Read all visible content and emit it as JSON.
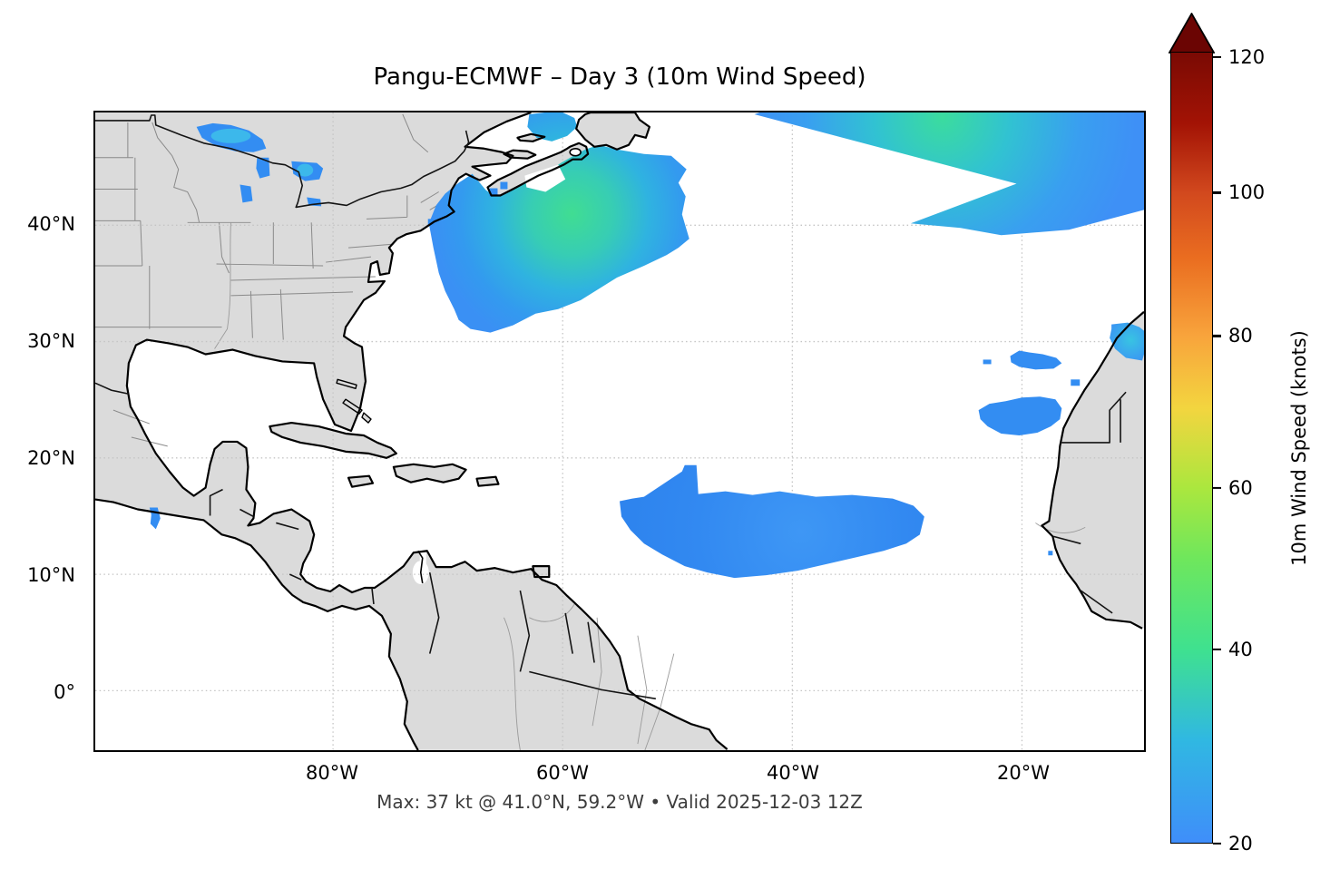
{
  "title": "Pangu-ECMWF – Day 3 (10m Wind Speed)",
  "caption": "Max: 37 kt @ 41.0°N, 59.2°W • Valid 2025-12-03 12Z",
  "axes": {
    "x_tick_labels": [
      "80°W",
      "60°W",
      "40°W",
      "20°W"
    ],
    "y_tick_labels": [
      "40°N",
      "30°N",
      "20°N",
      "10°N",
      "0°"
    ]
  },
  "colorbar": {
    "label": "10m Wind Speed (knots)",
    "tick_labels": [
      "120",
      "100",
      "80",
      "60",
      "40",
      "20"
    ],
    "tick_values": [
      120,
      100,
      80,
      60,
      40,
      20
    ],
    "tick_offsets_pct": [
      0.7,
      17.8,
      35.9,
      55.1,
      75.5,
      100
    ],
    "min": 20,
    "max": 120,
    "extend": "max",
    "arrow_color": "#6b0503",
    "gradient_stops": [
      {
        "pct": 0,
        "color": "#7a0a04"
      },
      {
        "pct": 9,
        "color": "#a31305"
      },
      {
        "pct": 17.8,
        "color": "#d2491e"
      },
      {
        "pct": 26,
        "color": "#ea6d20"
      },
      {
        "pct": 35.9,
        "color": "#f8a43c"
      },
      {
        "pct": 45,
        "color": "#f3d53f"
      },
      {
        "pct": 55.1,
        "color": "#abe73e"
      },
      {
        "pct": 64,
        "color": "#6fe75c"
      },
      {
        "pct": 75.5,
        "color": "#3fe18f"
      },
      {
        "pct": 87,
        "color": "#30b8e2"
      },
      {
        "pct": 100,
        "color": "#3f8efa"
      }
    ]
  },
  "colors": {
    "land": "#dbdbdb",
    "coastline": "#000000",
    "country_border": "#141414",
    "state_border": "#8a8a8a",
    "river": "#9a9a9a",
    "gridline": "#c4c4c4",
    "ocean": "#ffffff",
    "wind_low": "#338df2",
    "wind_cyan": "#3ec0ea",
    "wind_core_green": "#40dd92",
    "caption_text": "#3d3d3d"
  },
  "chart_data": {
    "type": "map_contourf",
    "title": "Pangu-ECMWF – Day 3 (10m Wind Speed)",
    "model": "Pangu-ECMWF",
    "lead_time": "Day 3",
    "variable": "10m Wind Speed",
    "units": "knots",
    "valid_time": "2025-12-03 12Z",
    "max_value": {
      "value_kt": 37,
      "lat": 41.0,
      "lon": -59.2
    },
    "contour_range_kt": [
      20,
      120
    ],
    "colorbar_extend": "max",
    "extent": {
      "lon_min": -100.7,
      "lon_max": -9.1,
      "lat_min": -5.3,
      "lat_max": 50.0
    },
    "gridlines": {
      "lons": [
        -80,
        -60,
        -40,
        -20
      ],
      "lats": [
        40,
        30,
        20,
        10,
        0
      ],
      "style": "dotted"
    },
    "features": [
      {
        "name": "northwest-atlantic-storm",
        "center_lat": 41.0,
        "center_lon": -59.2,
        "approx_peak_kt": 37,
        "description": "Large wind maximum south of Nova Scotia / Newfoundland, green core ~35-37 kt surrounded by 20-30 kt blues"
      },
      {
        "name": "northeast-atlantic-band",
        "center_lat": 46.0,
        "center_lon": -25.0,
        "approx_peak_kt": 32,
        "description": "Broad band along northern edge of domain widening toward the east, greenish core near top edge"
      },
      {
        "name": "tropical-atlantic-trade-winds",
        "center_lat": 14.0,
        "center_lon": -42.0,
        "approx_peak_kt": 25,
        "description": "Uniform ~20-25 kt blue trade-wind belt between 10°N and 19°N, 55°W-29°W"
      },
      {
        "name": "morocco-offshore-patch",
        "center_lat": 30.0,
        "center_lon": -12.5,
        "approx_peak_kt": 27,
        "description": "Small patch with cyan core off the Moroccan coast near 30°N"
      },
      {
        "name": "canary-wake-crescent",
        "center_lat": 24.5,
        "center_lon": -13.0,
        "approx_peak_kt": 23,
        "description": "Crescent-shaped 20-23 kt area southwest of the Canary Islands"
      },
      {
        "name": "madeira-streak",
        "center_lat": 28.5,
        "center_lon": -15.0,
        "approx_peak_kt": 21,
        "description": "Thin east-west streak near 28.5°N"
      },
      {
        "name": "great-lakes-patches",
        "center_lat": 47.0,
        "center_lon": -88.0,
        "approx_peak_kt": 24,
        "description": "Blue/cyan patches over Lakes Superior, Michigan and Huron"
      },
      {
        "name": "gulf-of-st-lawrence",
        "center_lat": 48.0,
        "center_lon": -61.0,
        "approx_peak_kt": 28,
        "description": "Blue-teal patch in the Gulf of St. Lawrence reaching the top edge"
      },
      {
        "name": "tehuantepec-gap-wind",
        "center_lat": 15.0,
        "center_lon": -95.5,
        "approx_peak_kt": 21,
        "description": "Tiny blue gap-wind spot on the Pacific coast of Mexico"
      }
    ]
  }
}
